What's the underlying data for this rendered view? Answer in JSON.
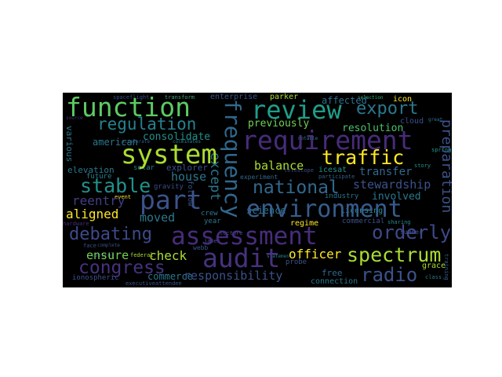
{
  "words": {
    "function": "function",
    "review": "review",
    "export": "export",
    "requirement": "requirement",
    "regulation": "regulation",
    "system": "system",
    "frequency": "frequency",
    "traffic": "traffic",
    "part": "part",
    "stable": "stable",
    "national": "national",
    "environment": "environment",
    "assessment": "assessment",
    "audit": "audit",
    "debating": "debating",
    "orderly": "orderly",
    "congress": "congress",
    "spectrum": "spectrum",
    "radio": "radio",
    "preparation": "preparation",
    "stewardship": "stewardship",
    "house": "house",
    "balance": "balance",
    "previously": "previously",
    "resolution": "resolution",
    "transfer": "transfer",
    "involved": "involved",
    "reentry": "reentry",
    "aligned": "aligned",
    "moved": "moved",
    "check": "check",
    "ensure": "ensure",
    "officer": "officer",
    "responsibility": "responsibility",
    "commerce": "commerce",
    "ionospheric": "ionospheric",
    "american": "american",
    "consolidate": "consolidate",
    "elevation": "elevation",
    "enterprise": "enterprise",
    "affected": "affected",
    "icon": "icon",
    "parker": "parker",
    "cloud": "cloud",
    "science": "science",
    "regime": "regime",
    "licensing": "licensing",
    "commercial": "commercial",
    "industry": "industry",
    "icesat": "icesat",
    "explorer": "explorer",
    "various": "various",
    "except": "except",
    "free": "free",
    "connection": "connection",
    "grace": "grace",
    "webb": "webb",
    "crew": "crew",
    "follow": "follow",
    "year": "year",
    "federal": "federal",
    "probe": "probe",
    "future": "future",
    "solar": "solar",
    "gravity": "gravity",
    "transform": "transform",
    "spaceflight": "spaceflight",
    "telescope": "telescope",
    "participate": "participate",
    "selection": "selection",
    "sharing": "sharing",
    "summer": "summer",
    "story": "story",
    "class": "class",
    "spring": "spring",
    "experiment": "experiment",
    "lecture": "lecture",
    "james": "james",
    "executive": "executive",
    "attendee": "attendee",
    "control": "control",
    "face": "face",
    "hardware": "hardware",
    "event": "event",
    "source": "source",
    "accelerate": "accelerate",
    "culminates": "culminates",
    "great": "great",
    "training": "training",
    "statement": "statement",
    "notable": "notable",
    "complete": "complete"
  }
}
